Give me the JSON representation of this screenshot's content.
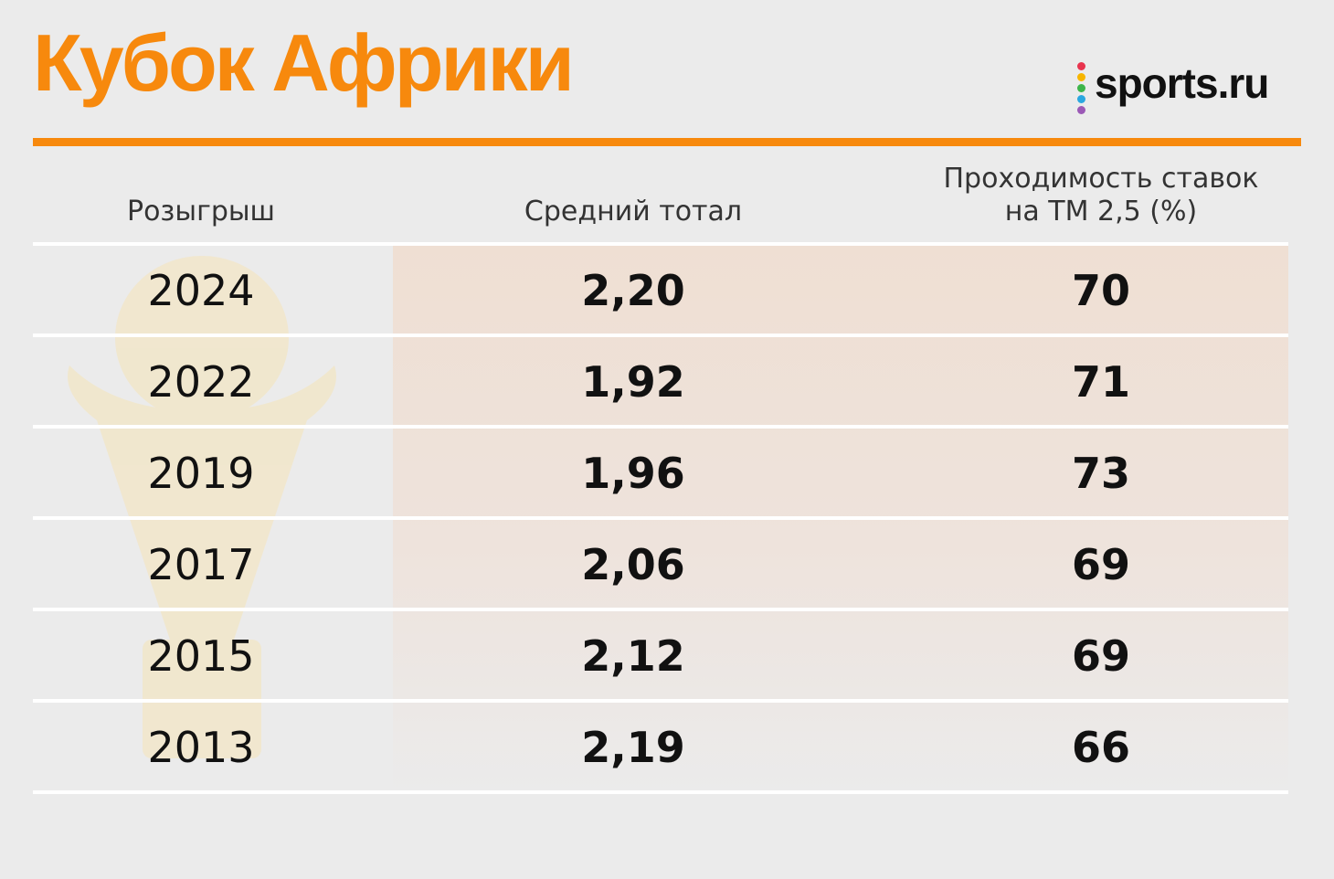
{
  "header": {
    "title": "Кубок Африки",
    "logo": "sports.ru"
  },
  "table": {
    "columns": [
      "Розыгрыш",
      "Средний тотал",
      "Проходимость ставок на ТМ 2,5 (%)"
    ],
    "rows": [
      [
        "2024",
        "2,20",
        "70"
      ],
      [
        "2022",
        "1,92",
        "71"
      ],
      [
        "2019",
        "1,96",
        "73"
      ],
      [
        "2017",
        "2,06",
        "69"
      ],
      [
        "2015",
        "2,12",
        "69"
      ],
      [
        "2013",
        "2,19",
        "66"
      ]
    ]
  }
}
